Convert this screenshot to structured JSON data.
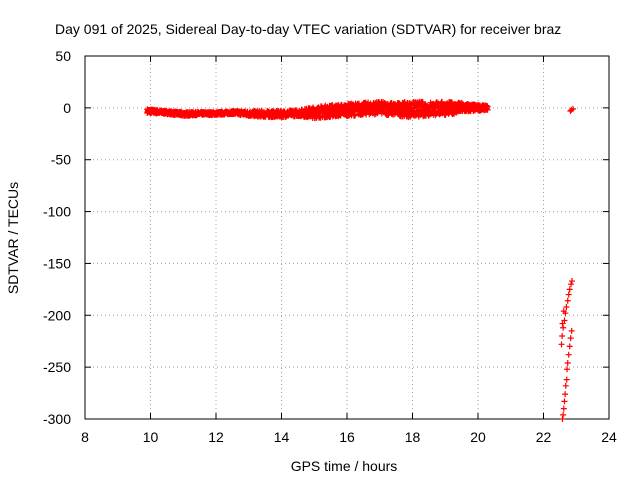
{
  "chart_data": {
    "type": "scatter",
    "title": "Day 091 of 2025, Sidereal Day-to-day VTEC variation (SDTVAR) for receiver braz",
    "xlabel": "GPS time / hours",
    "ylabel": "SDTVAR / TECUs",
    "xlim": [
      8,
      24
    ],
    "ylim": [
      -300,
      50
    ],
    "xticks": [
      "8",
      "10",
      "12",
      "14",
      "16",
      "18",
      "20",
      "22",
      "24"
    ],
    "yticks": [
      "50",
      "0",
      "-50",
      "-100",
      "-150",
      "-200",
      "-250",
      "-300"
    ],
    "grid": true,
    "marker": "plus",
    "series_color": "#ff0000",
    "band": {
      "x": [
        9.9,
        10.5,
        11.0,
        11.5,
        12.0,
        12.5,
        13.0,
        13.5,
        14.0,
        14.5,
        15.0,
        15.5,
        16.0,
        16.5,
        17.0,
        17.5,
        18.0,
        18.5,
        19.0,
        19.5,
        20.0,
        20.3
      ],
      "upper": [
        -1,
        -3,
        -4,
        -4,
        -4,
        -3,
        -3,
        -3,
        -3,
        -2,
        1,
        3,
        4,
        5,
        6,
        5,
        6,
        6,
        6,
        5,
        3,
        2
      ],
      "lower": [
        -5,
        -6,
        -8,
        -7,
        -7,
        -6,
        -8,
        -9,
        -9,
        -8,
        -10,
        -9,
        -8,
        -7,
        -6,
        -8,
        -9,
        -8,
        -7,
        -5,
        -3,
        -2
      ]
    },
    "points": [
      {
        "x": 22.85,
        "y": -2
      },
      {
        "x": 22.9,
        "y": -1
      },
      {
        "x": 22.82,
        "y": -3
      },
      {
        "x": 22.87,
        "y": -167
      },
      {
        "x": 22.84,
        "y": -170
      },
      {
        "x": 22.8,
        "y": -175
      },
      {
        "x": 22.77,
        "y": -180
      },
      {
        "x": 22.74,
        "y": -186
      },
      {
        "x": 22.7,
        "y": -192
      },
      {
        "x": 22.67,
        "y": -198
      },
      {
        "x": 22.64,
        "y": -205
      },
      {
        "x": 22.6,
        "y": -212
      },
      {
        "x": 22.57,
        "y": -220
      },
      {
        "x": 22.55,
        "y": -228
      },
      {
        "x": 22.58,
        "y": -208
      },
      {
        "x": 22.62,
        "y": -196
      },
      {
        "x": 22.86,
        "y": -215
      },
      {
        "x": 22.83,
        "y": -222
      },
      {
        "x": 22.8,
        "y": -230
      },
      {
        "x": 22.77,
        "y": -238
      },
      {
        "x": 22.74,
        "y": -246
      },
      {
        "x": 22.72,
        "y": -252
      },
      {
        "x": 22.71,
        "y": -262
      },
      {
        "x": 22.68,
        "y": -268
      },
      {
        "x": 22.66,
        "y": -276
      },
      {
        "x": 22.64,
        "y": -283
      },
      {
        "x": 22.62,
        "y": -290
      },
      {
        "x": 22.6,
        "y": -296
      },
      {
        "x": 22.58,
        "y": -300
      }
    ]
  }
}
